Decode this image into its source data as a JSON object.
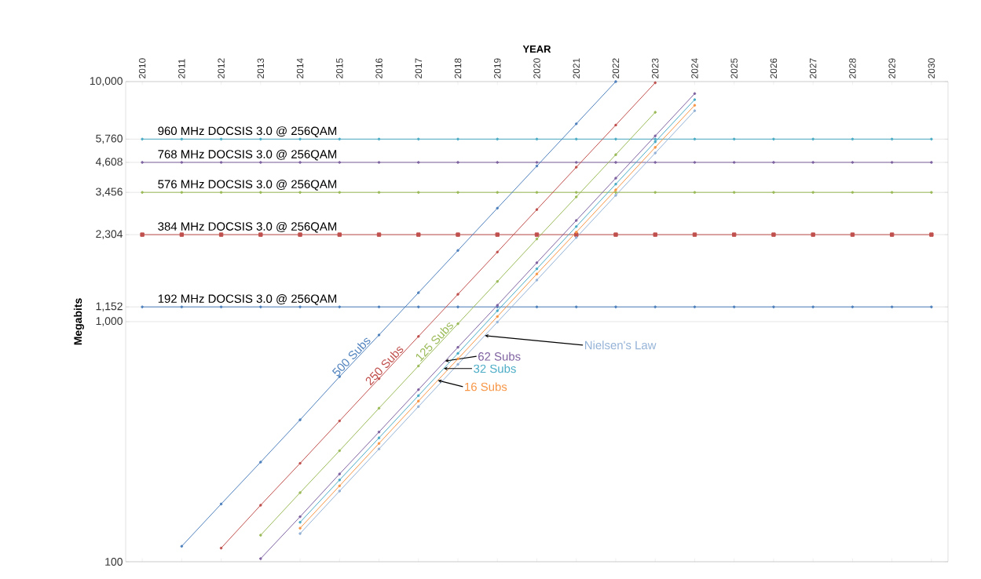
{
  "chart_data": {
    "type": "line",
    "xlabel": "YEAR",
    "ylabel": "Megabits",
    "categories": [
      "2010",
      "2011",
      "2012",
      "2013",
      "2014",
      "2015",
      "2016",
      "2017",
      "2018",
      "2019",
      "2020",
      "2021",
      "2022",
      "2023",
      "2024",
      "2025",
      "2026",
      "2027",
      "2028",
      "2029",
      "2030"
    ],
    "log": "y",
    "ylim": [
      100,
      10000
    ],
    "yticks": [
      {
        "value": 100,
        "label": "100"
      },
      {
        "value": 1000,
        "label": "1,000"
      },
      {
        "value": 1152,
        "label": "1,152"
      },
      {
        "value": 2304,
        "label": "2,304"
      },
      {
        "value": 3456,
        "label": "3,456"
      },
      {
        "value": 4608,
        "label": "4,608"
      },
      {
        "value": 5760,
        "label": "5,760"
      },
      {
        "value": 10000,
        "label": "10,000"
      }
    ],
    "grid": "y",
    "marker": "circle",
    "series": [
      {
        "name": "192 MHz DOCSIS 3.0 @ 256QAM",
        "color": "#4f81bd",
        "values": [
          1152,
          1152,
          1152,
          1152,
          1152,
          1152,
          1152,
          1152,
          1152,
          1152,
          1152,
          1152,
          1152,
          1152,
          1152,
          1152,
          1152,
          1152,
          1152,
          1152,
          1152
        ]
      },
      {
        "name": "384 MHz DOCSIS 3.0 @ 256QAM",
        "color": "#c0504d",
        "marker": "square",
        "values": [
          2304,
          2304,
          2304,
          2304,
          2304,
          2304,
          2304,
          2304,
          2304,
          2304,
          2304,
          2304,
          2304,
          2304,
          2304,
          2304,
          2304,
          2304,
          2304,
          2304,
          2304
        ]
      },
      {
        "name": "576 MHz DOCSIS 3.0 @ 256QAM",
        "color": "#9bbb59",
        "values": [
          3456,
          3456,
          3456,
          3456,
          3456,
          3456,
          3456,
          3456,
          3456,
          3456,
          3456,
          3456,
          3456,
          3456,
          3456,
          3456,
          3456,
          3456,
          3456,
          3456,
          3456
        ]
      },
      {
        "name": "768 MHz DOCSIS 3.0 @ 256QAM",
        "color": "#8064a2",
        "values": [
          4608,
          4608,
          4608,
          4608,
          4608,
          4608,
          4608,
          4608,
          4608,
          4608,
          4608,
          4608,
          4608,
          4608,
          4608,
          4608,
          4608,
          4608,
          4608,
          4608,
          4608
        ]
      },
      {
        "name": "960 MHz DOCSIS 3.0 @ 256QAM",
        "color": "#4bacc6",
        "values": [
          5760,
          5760,
          5760,
          5760,
          5760,
          5760,
          5760,
          5760,
          5760,
          5760,
          5760,
          5760,
          5760,
          5760,
          5760,
          5760,
          5760,
          5760,
          5760,
          5760,
          5760
        ]
      },
      {
        "name": "500 Subs",
        "color": "#4f81bd",
        "values": [
          null,
          116,
          174,
          260,
          390,
          590,
          880,
          1320,
          1980,
          2970,
          4450,
          6670,
          10000,
          null,
          null,
          null,
          null,
          null,
          null,
          null,
          null
        ]
      },
      {
        "name": "250 Subs",
        "color": "#c0504d",
        "values": [
          null,
          null,
          114,
          172,
          257,
          386,
          579,
          868,
          1300,
          1950,
          2930,
          4400,
          6590,
          9890,
          null,
          null,
          null,
          null,
          null,
          null,
          null
        ]
      },
      {
        "name": "125 Subs",
        "color": "#9bbb59",
        "values": [
          null,
          null,
          null,
          129,
          194,
          290,
          436,
          654,
          980,
          1470,
          2210,
          3310,
          4960,
          7450,
          null,
          null,
          null,
          null,
          null,
          null,
          null
        ]
      },
      {
        "name": "62 Subs",
        "color": "#8064a2",
        "values": [
          null,
          null,
          null,
          103,
          154,
          232,
          347,
          521,
          782,
          1170,
          1760,
          2640,
          3960,
          5940,
          8910,
          null,
          null,
          null,
          null,
          null,
          null
        ]
      },
      {
        "name": "32 Subs",
        "color": "#4bacc6",
        "values": [
          null,
          null,
          null,
          null,
          146,
          219,
          328,
          492,
          738,
          1110,
          1660,
          2490,
          3740,
          5610,
          8410,
          null,
          null,
          null,
          null,
          null,
          null
        ]
      },
      {
        "name": "16 Subs",
        "color": "#f79646",
        "values": [
          null,
          null,
          null,
          null,
          138,
          207,
          311,
          467,
          700,
          1050,
          1580,
          2360,
          3540,
          5320,
          7970,
          null,
          null,
          null,
          null,
          null,
          null
        ]
      },
      {
        "name": "Nielsen's Law",
        "color": "#95b3d7",
        "values": [
          null,
          null,
          null,
          null,
          131,
          197,
          295,
          443,
          664,
          996,
          1490,
          2240,
          3360,
          5040,
          7560,
          null,
          null,
          null,
          null,
          null,
          null
        ]
      }
    ]
  }
}
